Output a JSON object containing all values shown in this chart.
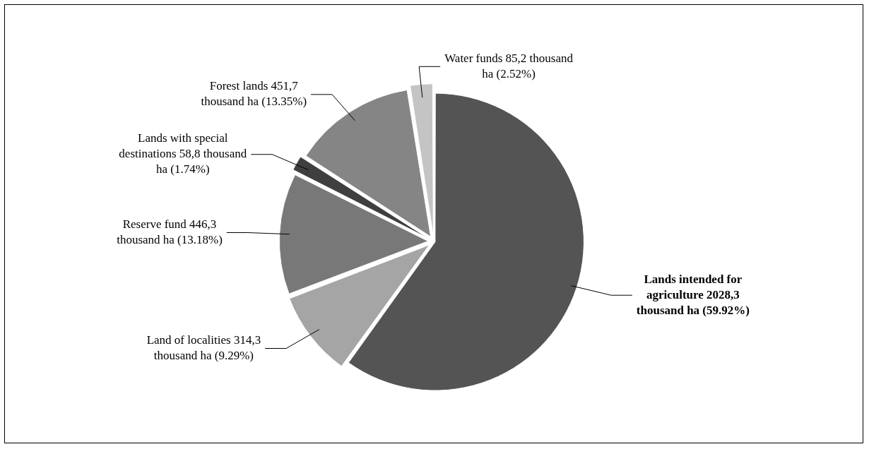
{
  "chart_data": {
    "type": "pie",
    "categories": [
      "Lands intended  for agriculture",
      "Land  of localities",
      "Reserve fund",
      "Lands with special destinations",
      "Forest lands",
      "Water funds"
    ],
    "values": [
      59.92,
      9.29,
      13.18,
      1.74,
      13.35,
      2.52
    ],
    "value_labels": [
      "2028,3 thousand ha (59.92%)",
      "314,3 thousand ha (9.29%)",
      "446,3 thousand ha (13.18%)",
      "58,8 thousand ha  (1.74%)",
      "451,7 thousand  ha (13.35%)",
      "85,2 thousand ha (2.52%)"
    ],
    "colors": [
      "#545454",
      "#a5a5a5",
      "#787878",
      "#3f3f3f",
      "#858585",
      "#c4c4c4"
    ]
  }
}
